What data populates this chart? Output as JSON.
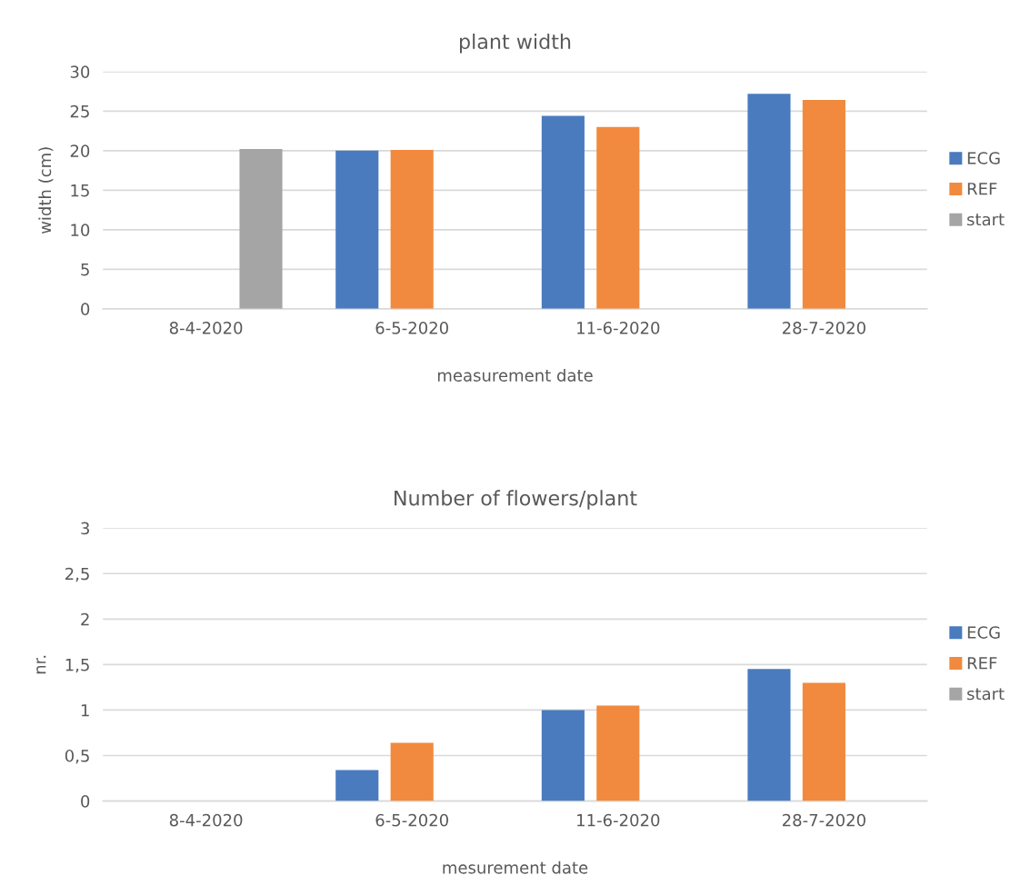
{
  "chart_data": [
    {
      "type": "bar",
      "title": "plant width",
      "xlabel": "measurement date",
      "ylabel": "width (cm)",
      "categories": [
        "8-4-2020",
        "6-5-2020",
        "11-6-2020",
        "28-7-2020"
      ],
      "series": [
        {
          "name": "ECG",
          "color": "#4a7bbf",
          "values": [
            null,
            20.0,
            24.4,
            27.2
          ]
        },
        {
          "name": "REF",
          "color": "#f18a3e",
          "values": [
            null,
            20.1,
            23.0,
            26.4
          ]
        },
        {
          "name": "start",
          "color": "#a5a5a5",
          "values": [
            20.2,
            null,
            null,
            null
          ]
        }
      ],
      "ylim": [
        0,
        30
      ],
      "yticks": [
        0,
        5,
        10,
        15,
        20,
        25,
        30
      ],
      "grid": "y",
      "legend": "right"
    },
    {
      "type": "bar",
      "title": "Number of flowers/plant",
      "xlabel": "mesurement date",
      "ylabel": "nr.",
      "categories": [
        "8-4-2020",
        "6-5-2020",
        "11-6-2020",
        "28-7-2020"
      ],
      "series": [
        {
          "name": "ECG",
          "color": "#4a7bbf",
          "values": [
            null,
            0.34,
            1.0,
            1.45
          ]
        },
        {
          "name": "REF",
          "color": "#f18a3e",
          "values": [
            null,
            0.64,
            1.05,
            1.3
          ]
        },
        {
          "name": "start",
          "color": "#a5a5a5",
          "values": [
            null,
            null,
            null,
            null
          ]
        }
      ],
      "ylim": [
        0,
        3
      ],
      "yticks": [
        0,
        {
          "value": 0.5,
          "label": "0,5"
        },
        1,
        {
          "value": 1.5,
          "label": "1,5"
        },
        2,
        {
          "value": 2.5,
          "label": "2,5"
        },
        3
      ],
      "grid": "y",
      "legend": "right"
    }
  ]
}
